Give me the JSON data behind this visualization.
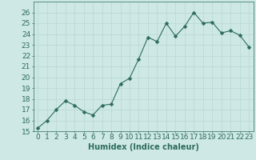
{
  "x": [
    0,
    1,
    2,
    3,
    4,
    5,
    6,
    7,
    8,
    9,
    10,
    11,
    12,
    13,
    14,
    15,
    16,
    17,
    18,
    19,
    20,
    21,
    22,
    23
  ],
  "y": [
    15.3,
    16.0,
    17.0,
    17.8,
    17.4,
    16.8,
    16.5,
    17.4,
    17.5,
    19.4,
    19.9,
    21.7,
    23.7,
    23.3,
    25.0,
    23.8,
    24.7,
    26.0,
    25.0,
    25.1,
    24.1,
    24.3,
    23.9,
    22.8
  ],
  "line_color": "#2e6b5e",
  "marker": "D",
  "marker_size": 2.5,
  "bg_color": "#cde8e5",
  "grid_color": "#b8d8d4",
  "xlabel": "Humidex (Indice chaleur)",
  "ylim": [
    15,
    27
  ],
  "xlim": [
    -0.5,
    23.5
  ],
  "yticks": [
    15,
    16,
    17,
    18,
    19,
    20,
    21,
    22,
    23,
    24,
    25,
    26
  ],
  "xticks": [
    0,
    1,
    2,
    3,
    4,
    5,
    6,
    7,
    8,
    9,
    10,
    11,
    12,
    13,
    14,
    15,
    16,
    17,
    18,
    19,
    20,
    21,
    22,
    23
  ],
  "tick_color": "#2e6b5e",
  "label_color": "#2e6b5e",
  "xlabel_fontsize": 7,
  "tick_fontsize": 6.5
}
